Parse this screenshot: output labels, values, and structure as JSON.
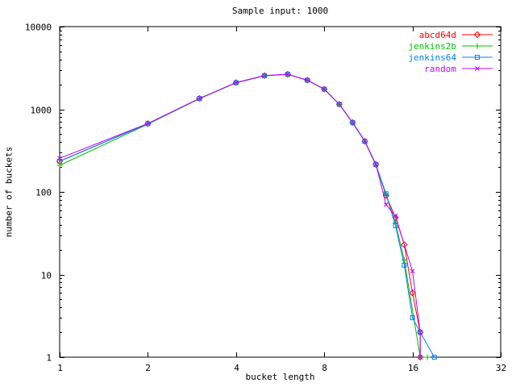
{
  "window": {
    "background": "#ffffff",
    "axis_color": "#000000"
  },
  "chart_data": {
    "type": "line",
    "title": "Sample input: 1000",
    "xlabel": "bucket length",
    "ylabel": "number of buckets",
    "x_scale": "log2",
    "y_scale": "log10",
    "xlim": [
      1,
      32
    ],
    "ylim": [
      1,
      10000
    ],
    "xticks": [
      1,
      2,
      4,
      8,
      16,
      32
    ],
    "yticks": [
      1,
      10,
      100,
      1000,
      10000
    ],
    "y_minor_decades": [
      1,
      10,
      100,
      1000
    ],
    "grid": "off",
    "legend_position": "top-right-inside",
    "series": [
      {
        "name": "abcd64d",
        "color": "#ff0000",
        "marker": "diamond",
        "points": [
          [
            1,
            235
          ],
          [
            2,
            670
          ],
          [
            3,
            1350
          ],
          [
            4,
            2100
          ],
          [
            5,
            2550
          ],
          [
            6,
            2650
          ],
          [
            7,
            2250
          ],
          [
            8,
            1750
          ],
          [
            9,
            1150
          ],
          [
            10,
            690
          ],
          [
            11,
            410
          ],
          [
            12,
            215
          ],
          [
            13,
            90
          ],
          [
            14,
            49
          ],
          [
            15,
            23
          ],
          [
            16,
            6
          ],
          [
            17,
            2
          ],
          [
            17,
            1
          ]
        ]
      },
      {
        "name": "jenkins2b",
        "color": "#00c000",
        "marker": "plus",
        "points": [
          [
            1,
            210
          ],
          [
            2,
            660
          ],
          [
            3,
            1340
          ],
          [
            4,
            2085
          ],
          [
            5,
            2540
          ],
          [
            6,
            2640
          ],
          [
            7,
            2240
          ],
          [
            8,
            1740
          ],
          [
            9,
            1145
          ],
          [
            10,
            685
          ],
          [
            11,
            405
          ],
          [
            12,
            212
          ],
          [
            13,
            92
          ],
          [
            14,
            42
          ],
          [
            15,
            15
          ],
          [
            17,
            1
          ],
          [
            18,
            1
          ]
        ]
      },
      {
        "name": "jenkins64",
        "color": "#0080ff",
        "marker": "square",
        "points": [
          [
            1,
            235
          ],
          [
            2,
            668
          ],
          [
            3,
            1348
          ],
          [
            4,
            2095
          ],
          [
            5,
            2548
          ],
          [
            6,
            2648
          ],
          [
            7,
            2248
          ],
          [
            8,
            1748
          ],
          [
            9,
            1148
          ],
          [
            10,
            688
          ],
          [
            11,
            408
          ],
          [
            12,
            214
          ],
          [
            13,
            95
          ],
          [
            14,
            39
          ],
          [
            15,
            13
          ],
          [
            16,
            3
          ],
          [
            17,
            2
          ],
          [
            19,
            1
          ]
        ]
      },
      {
        "name": "random",
        "color": "#c000ff",
        "marker": "x",
        "points": [
          [
            1,
            255
          ],
          [
            2,
            672
          ],
          [
            3,
            1352
          ],
          [
            4,
            2102
          ],
          [
            5,
            2552
          ],
          [
            6,
            2652
          ],
          [
            7,
            2252
          ],
          [
            8,
            1752
          ],
          [
            9,
            1152
          ],
          [
            10,
            692
          ],
          [
            11,
            412
          ],
          [
            12,
            216
          ],
          [
            13,
            70
          ],
          [
            14,
            51
          ],
          [
            16,
            11
          ],
          [
            17,
            2
          ],
          [
            17,
            1
          ]
        ]
      }
    ]
  }
}
